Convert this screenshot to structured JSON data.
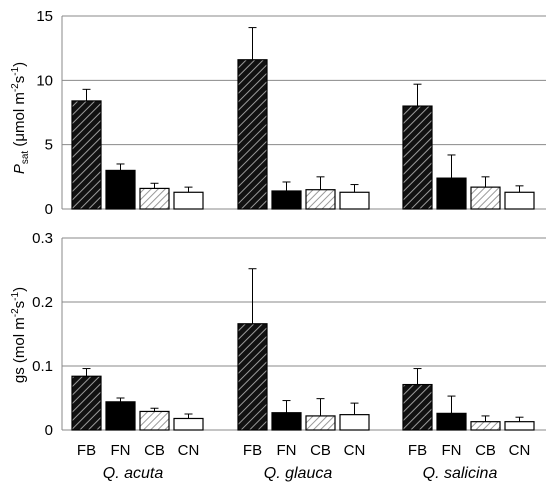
{
  "chart_data": [
    {
      "type": "bar",
      "id": "psat",
      "ylabel": {
        "main": "P",
        "sub": "sat",
        "units": " (μmol m",
        "sup1": "-2",
        "mid": "s",
        "sup2": "-1",
        "end": ")"
      },
      "ylim": [
        0,
        15
      ],
      "yticks": [
        0,
        5,
        10,
        15
      ],
      "ytick_labels": [
        "0",
        "5",
        "10",
        "15"
      ],
      "groups": [
        "Q. acuta",
        "Q. glauca",
        "Q. salicina"
      ],
      "categories": [
        "FB",
        "FN",
        "CB",
        "CN"
      ],
      "values": [
        [
          8.4,
          3.0,
          1.6,
          1.3
        ],
        [
          11.6,
          1.4,
          1.5,
          1.3
        ],
        [
          8.0,
          2.4,
          1.7,
          1.3
        ]
      ],
      "errors": [
        [
          0.9,
          0.5,
          0.4,
          0.4
        ],
        [
          2.5,
          0.7,
          1.0,
          0.6
        ],
        [
          1.7,
          1.8,
          0.8,
          0.5
        ]
      ],
      "grid": true
    },
    {
      "type": "bar",
      "id": "gs",
      "ylabel": {
        "main": "gs",
        "units": " (mol m",
        "sup1": "-2",
        "mid": "s",
        "sup2": "-1",
        "end": ")"
      },
      "ylim": [
        0,
        0.3
      ],
      "yticks": [
        0,
        0.1,
        0.2,
        0.3
      ],
      "ytick_labels": [
        "0",
        "0.1",
        "0.2",
        "0.3"
      ],
      "groups": [
        "Q. acuta",
        "Q. glauca",
        "Q. salicina"
      ],
      "categories": [
        "FB",
        "FN",
        "CB",
        "CN"
      ],
      "values": [
        [
          0.084,
          0.044,
          0.029,
          0.018
        ],
        [
          0.166,
          0.027,
          0.022,
          0.024
        ],
        [
          0.071,
          0.026,
          0.013,
          0.013
        ]
      ],
      "errors": [
        [
          0.012,
          0.006,
          0.005,
          0.007
        ],
        [
          0.086,
          0.019,
          0.027,
          0.018
        ],
        [
          0.025,
          0.027,
          0.009,
          0.007
        ]
      ],
      "grid": true
    }
  ],
  "x_category_labels": [
    "FB",
    "FN",
    "CB",
    "CN"
  ],
  "species_labels": [
    "Q. acuta",
    "Q. glauca",
    "Q. salicina"
  ],
  "bar_styles": {
    "FB": {
      "fill": "#333333",
      "pattern": "hatch-dark"
    },
    "FN": {
      "fill": "#000000",
      "pattern": "solid"
    },
    "CB": {
      "fill": "#ffffff",
      "pattern": "hatch-light"
    },
    "CN": {
      "fill": "#ffffff",
      "pattern": "none"
    }
  }
}
